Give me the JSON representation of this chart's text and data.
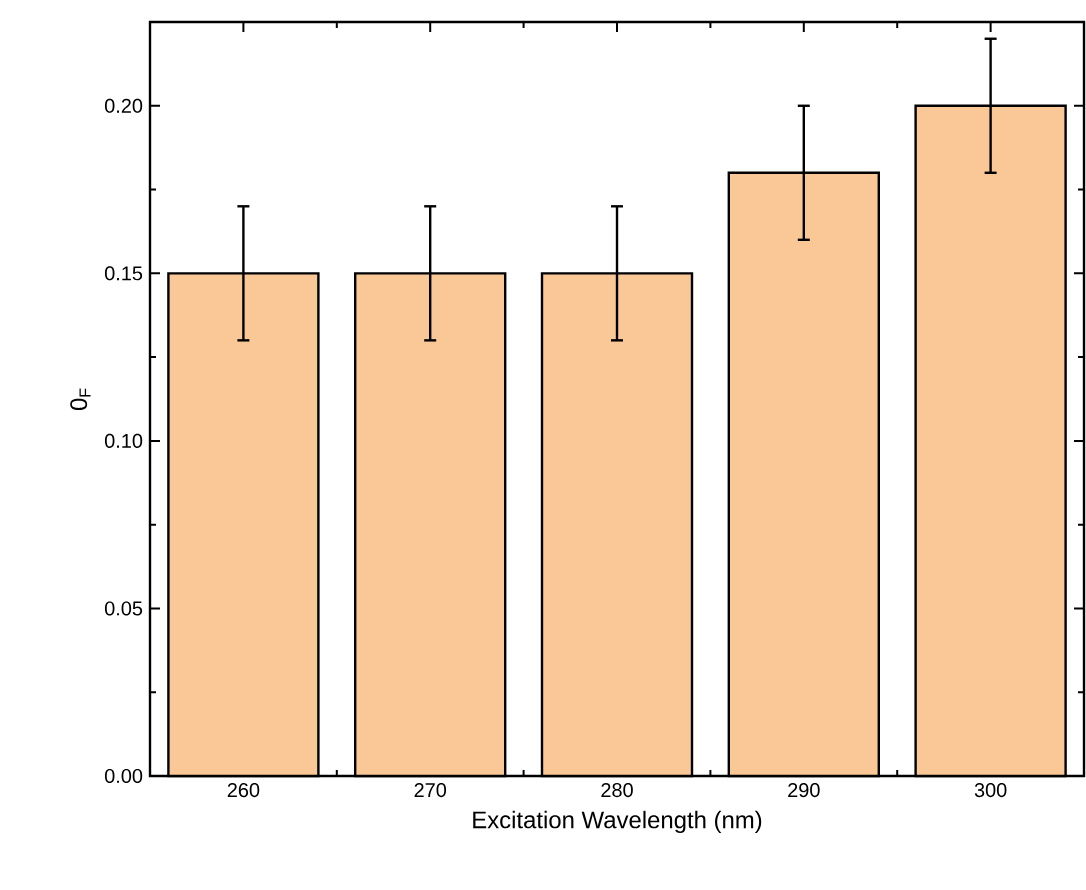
{
  "chart_data": {
    "type": "bar",
    "xlabel": "Excitation Wavelength (nm)",
    "ylabel": "0$_{F}$",
    "x": [
      260,
      270,
      280,
      290,
      300
    ],
    "values": [
      0.15,
      0.15,
      0.15,
      0.18,
      0.2
    ],
    "errors": [
      0.02,
      0.02,
      0.02,
      0.02,
      0.02
    ],
    "color": "#f9c896",
    "xlim": [
      255,
      305
    ],
    "ylim": [
      0,
      0.225
    ],
    "xticks": [
      260,
      270,
      280,
      290,
      300
    ],
    "yticks": [
      {
        "value": 0,
        "label": "0.00"
      },
      {
        "value": 0.05,
        "label": "0.05"
      },
      {
        "value": 0.1,
        "label": "0.10"
      },
      {
        "value": 0.15,
        "label": "0.15"
      },
      {
        "value": 0.2,
        "label": "0.20"
      }
    ],
    "grid": false
  }
}
